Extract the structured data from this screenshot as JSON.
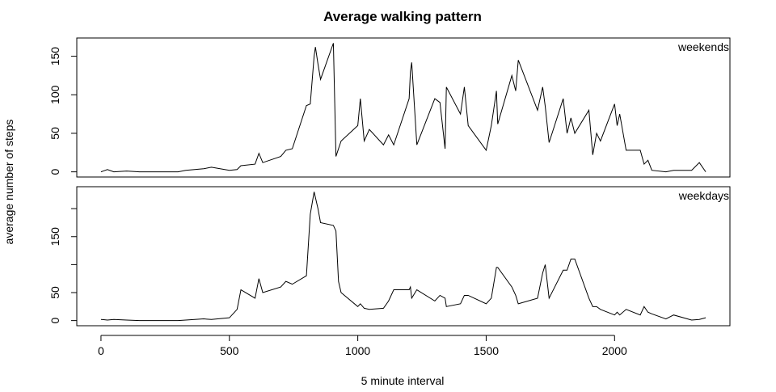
{
  "chart_data": {
    "type": "line",
    "title": "Average walking pattern",
    "x_label": "5 minute interval",
    "y_label": "average number of steps",
    "color": "#000000",
    "x": [
      0,
      25,
      50,
      100,
      150,
      200,
      300,
      330,
      400,
      430,
      500,
      530,
      545,
      600,
      615,
      630,
      700,
      720,
      745,
      800,
      815,
      830,
      835,
      845,
      855,
      905,
      915,
      925,
      935,
      1000,
      1010,
      1025,
      1045,
      1100,
      1120,
      1140,
      1200,
      1205,
      1210,
      1230,
      1300,
      1320,
      1340,
      1345,
      1400,
      1415,
      1430,
      1500,
      1520,
      1540,
      1545,
      1600,
      1615,
      1625,
      1700,
      1720,
      1730,
      1745,
      1800,
      1815,
      1830,
      1845,
      1900,
      1915,
      1930,
      1945,
      2000,
      2010,
      2020,
      2045,
      2100,
      2115,
      2130,
      2145,
      2200,
      2230,
      2300,
      2330,
      2355
    ],
    "xlim": [
      -94.2,
      2449.2
    ],
    "xticks": [
      0,
      500,
      1000,
      1500,
      2000
    ],
    "panels": [
      {
        "label": "weekends",
        "ylim": [
          -6.7,
          173.7
        ],
        "yticks": [
          0,
          50,
          100,
          150
        ],
        "values": [
          0,
          3,
          0,
          1,
          0,
          0,
          0,
          2,
          4,
          6,
          2,
          3,
          8,
          10,
          24,
          12,
          20,
          28,
          30,
          86,
          88,
          150,
          162,
          140,
          120,
          167,
          20,
          30,
          40,
          60,
          95,
          40,
          55,
          35,
          48,
          35,
          95,
          130,
          142,
          35,
          95,
          90,
          30,
          110,
          75,
          110,
          60,
          28,
          60,
          105,
          62,
          125,
          105,
          145,
          80,
          110,
          85,
          38,
          95,
          50,
          70,
          50,
          80,
          22,
          50,
          40,
          88,
          60,
          75,
          28,
          28,
          10,
          15,
          2,
          0,
          2,
          2,
          12,
          0
        ]
      },
      {
        "label": "weekdays",
        "ylim": [
          -9.2,
          239.2
        ],
        "yticks": [
          0,
          50,
          {
            "value": 100,
            "label": null
          },
          150,
          {
            "value": 200,
            "label": null
          }
        ],
        "values": [
          2,
          1,
          2,
          1,
          0,
          0,
          0,
          1,
          3,
          2,
          5,
          20,
          55,
          40,
          75,
          50,
          60,
          70,
          65,
          80,
          190,
          230,
          220,
          200,
          175,
          170,
          160,
          70,
          50,
          25,
          30,
          22,
          20,
          22,
          35,
          55,
          55,
          60,
          40,
          55,
          35,
          45,
          40,
          25,
          30,
          45,
          45,
          30,
          40,
          95,
          95,
          60,
          45,
          30,
          40,
          85,
          100,
          40,
          90,
          90,
          110,
          110,
          40,
          25,
          25,
          20,
          10,
          15,
          10,
          20,
          10,
          25,
          15,
          12,
          3,
          10,
          1,
          2,
          5
        ]
      }
    ]
  }
}
